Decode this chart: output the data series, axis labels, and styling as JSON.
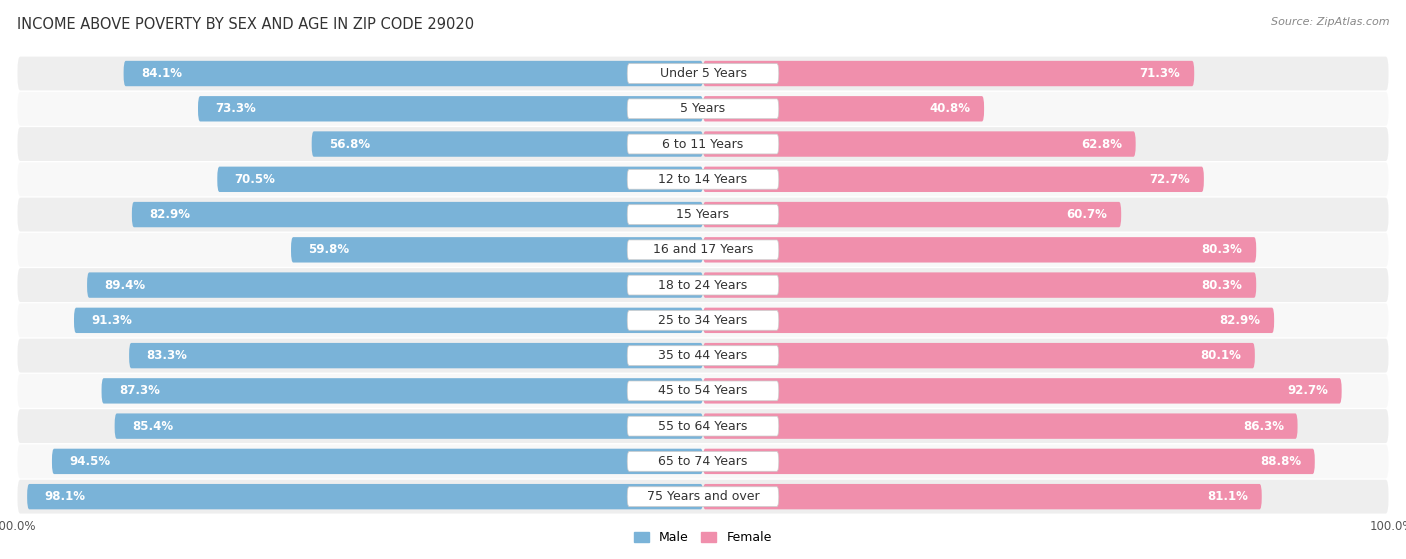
{
  "title": "INCOME ABOVE POVERTY BY SEX AND AGE IN ZIP CODE 29020",
  "source": "Source: ZipAtlas.com",
  "categories": [
    "Under 5 Years",
    "5 Years",
    "6 to 11 Years",
    "12 to 14 Years",
    "15 Years",
    "16 and 17 Years",
    "18 to 24 Years",
    "25 to 34 Years",
    "35 to 44 Years",
    "45 to 54 Years",
    "55 to 64 Years",
    "65 to 74 Years",
    "75 Years and over"
  ],
  "male_values": [
    84.1,
    73.3,
    56.8,
    70.5,
    82.9,
    59.8,
    89.4,
    91.3,
    83.3,
    87.3,
    85.4,
    94.5,
    98.1
  ],
  "female_values": [
    71.3,
    40.8,
    62.8,
    72.7,
    60.7,
    80.3,
    80.3,
    82.9,
    80.1,
    92.7,
    86.3,
    88.8,
    81.1
  ],
  "male_color": "#7ab3d8",
  "female_color": "#f08fac",
  "male_color_light": "#b8d4ea",
  "female_color_light": "#f7c0d0",
  "male_label": "Male",
  "female_label": "Female",
  "bg_color": "#ffffff",
  "row_odd_color": "#eeeeee",
  "row_even_color": "#f8f8f8",
  "title_fontsize": 10.5,
  "source_fontsize": 8,
  "value_fontsize": 8.5,
  "category_fontsize": 9,
  "legend_fontsize": 9,
  "tick_fontsize": 8.5
}
